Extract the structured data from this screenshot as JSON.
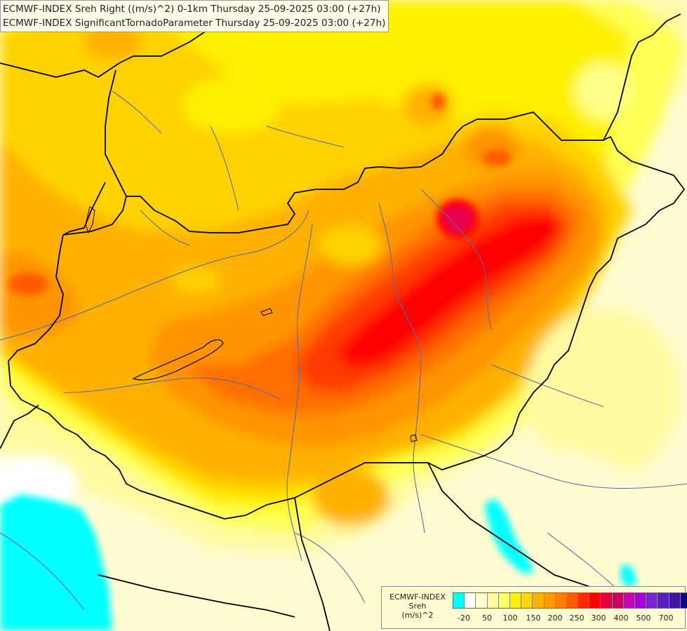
{
  "header": {
    "line1": "ECMWF-INDEX Sreh Right ((m/s)^2) 0-1km Thursday 25-09-2025 03:00 (+27h)",
    "line2": "ECMWF-INDEX SignificantTornadoParameter Thursday 25-09-2025 03:00 (+27h)"
  },
  "legend": {
    "line1": "ECMWF-INDEX",
    "line2": "Sreh",
    "line3": "(m/s)^2",
    "colors": [
      "#00ffff",
      "#ffffff",
      "#ffffcc",
      "#fffaa0",
      "#ffff66",
      "#fff000",
      "#ffd700",
      "#ffb300",
      "#ff9a00",
      "#ff7d00",
      "#ff5a00",
      "#ff2a00",
      "#ff0000",
      "#e6003c",
      "#cc0066",
      "#cc00bb",
      "#a700e0",
      "#7a22d8",
      "#5a1fbf",
      "#3f15a0",
      "#0a0a78"
    ],
    "ticks": [
      "-20",
      "50",
      "100",
      "150",
      "200",
      "250",
      "300",
      "400",
      "500",
      "700"
    ]
  },
  "colors": {
    "background": "#fffbd0",
    "border": "#000000",
    "river": "#5a6e9e"
  }
}
